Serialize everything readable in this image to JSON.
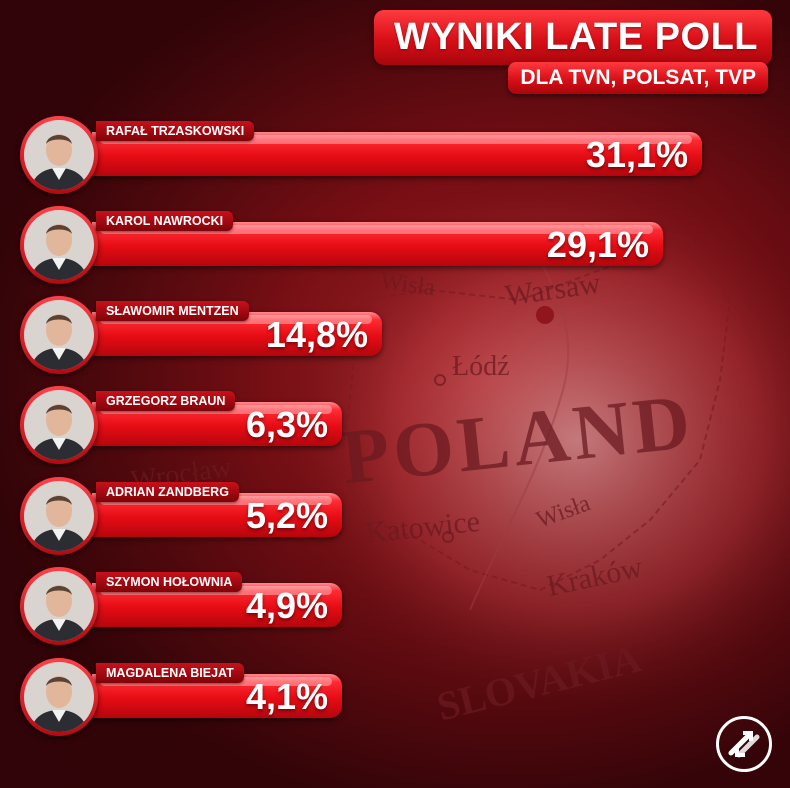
{
  "header": {
    "title": "WYNIKI LATE POLL",
    "subtitle": "DLA TVN, POLSAT, TVP"
  },
  "background_map": {
    "labels": [
      "POLAND",
      "Warsaw",
      "Łódź",
      "Wrocław",
      "Katowice",
      "Kraków",
      "Wisła",
      "Wisła",
      "SLOVAKIA"
    ]
  },
  "colors": {
    "bar": "#e60c14",
    "title_bg": "#d70f17",
    "text": "#ffffff"
  },
  "chart_data": {
    "type": "bar",
    "orientation": "horizontal",
    "title": "WYNIKI LATE POLL",
    "subtitle": "DLA TVN, POLSAT, TVP",
    "categories": [
      "RAFAŁ TRZASKOWSKI",
      "KAROL NAWROCKI",
      "SŁAWOMIR MENTZEN",
      "GRZEGORZ BRAUN",
      "ADRIAN ZANDBERG",
      "SZYMON HOŁOWNIA",
      "MAGDALENA BIEJAT"
    ],
    "values": [
      31.1,
      29.1,
      14.8,
      6.3,
      5.2,
      4.9,
      4.1
    ],
    "labels": [
      "31,1%",
      "29,1%",
      "14,8%",
      "6,3%",
      "5,2%",
      "4,9%",
      "4,1%"
    ],
    "unit": "%"
  },
  "logo_icon": "circle-arrows-logo-icon"
}
